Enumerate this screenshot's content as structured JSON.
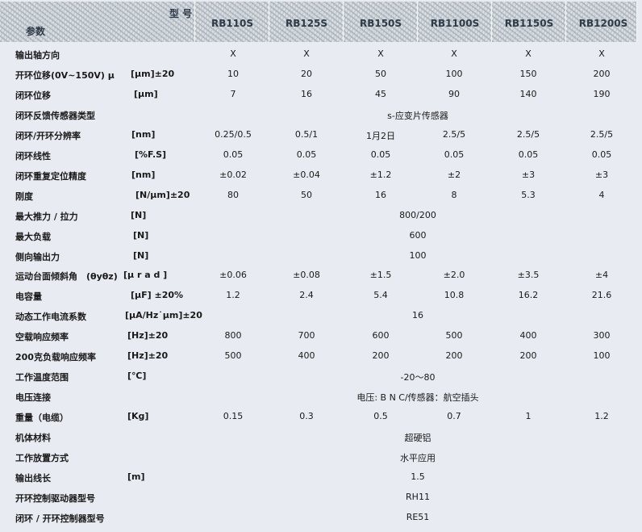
{
  "header": {
    "model_label": "型 号",
    "param_label": "参数",
    "models": [
      "RB110S",
      "RB125S",
      "RB150S",
      "RB1100S",
      "RB1150S",
      "RB1200S"
    ]
  },
  "rows": [
    {
      "label": "输出轴方向",
      "unit": "",
      "values": [
        "X",
        "X",
        "X",
        "X",
        "X",
        "X"
      ]
    },
    {
      "label": "开环位移(0V~150V) μ",
      "unit": "[μm]±20",
      "values": [
        "10",
        "20",
        "50",
        "100",
        "150",
        "200"
      ]
    },
    {
      "label": "闭环位移",
      "unit": "[μm]",
      "values": [
        "7",
        "16",
        "45",
        "90",
        "140",
        "190"
      ]
    },
    {
      "label": "闭环反馈传感器类型",
      "unit": "",
      "span": "s-应变片传感器"
    },
    {
      "label": "闭环/开环分辨率",
      "unit": "[nm]",
      "values": [
        "0.25/0.5",
        "0.5/1",
        "1月2日",
        "2.5/5",
        "2.5/5",
        "2.5/5"
      ]
    },
    {
      "label": "闭环线性",
      "unit": "[%F.S]",
      "values": [
        "0.05",
        "0.05",
        "0.05",
        "0.05",
        "0.05",
        "0.05"
      ]
    },
    {
      "label": "闭环重复定位精度",
      "unit": "[nm]",
      "values": [
        "±0.02",
        "±0.04",
        "±1.2",
        "±2",
        "±3",
        "±3"
      ]
    },
    {
      "label": "刚度",
      "unit": "[N/μm]±20",
      "values": [
        "80",
        "50",
        "16",
        "8",
        "5.3",
        "4"
      ]
    },
    {
      "label": "最大推力 / 拉力",
      "unit": "[N]",
      "span": "800/200"
    },
    {
      "label": "最大负载",
      "unit": "[N]",
      "span": "600"
    },
    {
      "label": "侧向输出力",
      "unit": "[N]",
      "span": "100"
    },
    {
      "label": "运动台面倾斜角　(θyθz)",
      "unit": "[μ r a d ]",
      "values": [
        "±0.06",
        "±0.08",
        "±1.5",
        "±2.0",
        "±3.5",
        "±4"
      ]
    },
    {
      "label": "电容量",
      "unit": "[μF]  ±20%",
      "values": [
        "1.2",
        "2.4",
        "5.4",
        "10.8",
        "16.2",
        "21.6"
      ]
    },
    {
      "label": "动态工作电流系数",
      "unit": "[μA/Hz˙μm]±20",
      "span": "16"
    },
    {
      "label": "空载响应频率",
      "unit": "[Hz]±20",
      "values": [
        "800",
        "700",
        "600",
        "500",
        "400",
        "300"
      ]
    },
    {
      "label": "200克负载响应频率",
      "unit": "[Hz]±20",
      "values": [
        "500",
        "400",
        "200",
        "200",
        "200",
        "100"
      ]
    },
    {
      "label": "工作温度范围",
      "unit": "[℃]",
      "span": "-20～80"
    },
    {
      "label": "电压连接",
      "unit": "",
      "span": "电压: B N C/传感器：航空插头"
    },
    {
      "label": "重量（电缆）",
      "unit": "[Kg]",
      "values": [
        "0.15",
        "0.3",
        "0.5",
        "0.7",
        "1",
        "1.2"
      ]
    },
    {
      "label": "机体材料",
      "unit": "",
      "span": "超硬铝"
    },
    {
      "label": "工作放置方式",
      "unit": "",
      "span": "水平应用"
    },
    {
      "label": "输出线长",
      "unit": "[m]",
      "span": "1.5"
    },
    {
      "label": "开环控制驱动器型号",
      "unit": "",
      "span": "RH11"
    },
    {
      "label": "闭环 / 开环控制器型号",
      "unit": "",
      "span": "RE51"
    }
  ]
}
